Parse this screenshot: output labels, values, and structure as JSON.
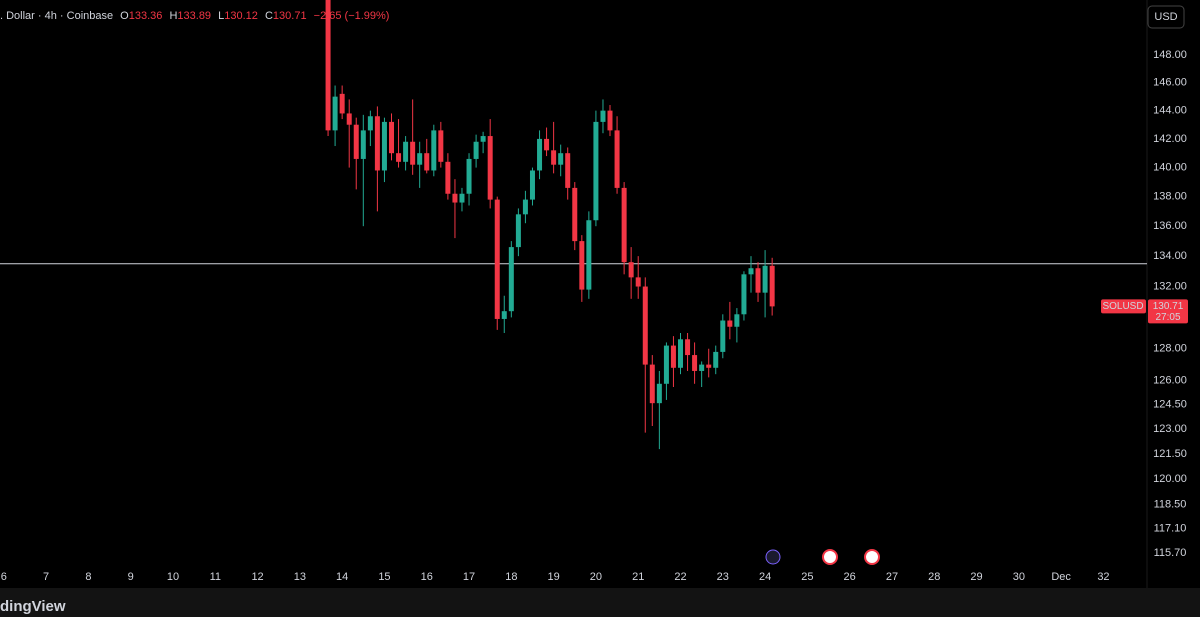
{
  "chart_data": {
    "type": "candlestick",
    "header": ". Dollar · 4h · Coinbase",
    "ohlc_prefixes": [
      "O",
      "H",
      "L",
      "C"
    ],
    "change": "−2.65 (−1.99%)",
    "currency": "USD",
    "symbol_label": "SOLUSD",
    "countdown": "27:05",
    "branding": "dingView",
    "up_color": "#22ab94",
    "down_color": "#f23645",
    "price_line": 133.5,
    "log_scale": true,
    "grid": false,
    "x": [
      13.667,
      13.833,
      14,
      14.167,
      14.333,
      14.5,
      14.667,
      14.833,
      15,
      15.167,
      15.333,
      15.5,
      15.667,
      15.833,
      16,
      16.167,
      16.333,
      16.5,
      16.667,
      16.833,
      17,
      17.167,
      17.333,
      17.5,
      17.667,
      17.833,
      18,
      18.167,
      18.333,
      18.5,
      18.667,
      18.833,
      19,
      19.167,
      19.333,
      19.5,
      19.667,
      19.833,
      20,
      20.167,
      20.333,
      20.5,
      20.667,
      20.833,
      21,
      21.167,
      21.333,
      21.5,
      21.667,
      21.833,
      22,
      22.167,
      22.333,
      22.5,
      22.667,
      22.833,
      23,
      23.167,
      23.333,
      23.5,
      23.667,
      23.833,
      24,
      24.167
    ],
    "open": [
      152.6,
      142.6,
      145.2,
      143.8,
      143.0,
      140.6,
      142.6,
      143.6,
      139.8,
      143.2,
      141.0,
      140.4,
      141.8,
      140.2,
      141.0,
      139.8,
      142.6,
      140.4,
      138.2,
      137.6,
      138.2,
      140.6,
      141.8,
      142.2,
      137.8,
      129.9,
      130.4,
      134.6,
      136.8,
      137.8,
      139.8,
      142.0,
      141.2,
      140.2,
      141.0,
      138.6,
      135.0,
      131.8,
      136.4,
      143.2,
      144.0,
      142.6,
      138.6,
      133.6,
      132.6,
      132.0,
      127.0,
      124.6,
      125.8,
      128.2,
      126.8,
      128.6,
      127.6,
      126.6,
      127.0,
      126.8,
      127.8,
      129.8,
      129.4,
      130.2,
      132.8,
      133.2,
      131.6,
      133.36
    ],
    "high": [
      153.5,
      145.8,
      145.8,
      144.8,
      143.5,
      143.7,
      144.0,
      144.3,
      143.5,
      143.8,
      143.4,
      142.2,
      144.8,
      141.8,
      142.0,
      143.0,
      143.2,
      141.0,
      139.2,
      138.6,
      141.0,
      142.3,
      142.5,
      143.4,
      138.0,
      131.4,
      135.0,
      137.2,
      138.4,
      140.0,
      142.6,
      142.8,
      143.2,
      141.6,
      141.4,
      139.0,
      135.4,
      137.0,
      144.0,
      144.8,
      144.4,
      143.6,
      139.0,
      134.6,
      134.0,
      132.6,
      127.6,
      126.6,
      128.4,
      128.8,
      129.0,
      129.0,
      128.4,
      127.2,
      128.0,
      128.2,
      130.2,
      131.0,
      130.6,
      133.0,
      134.0,
      133.6,
      134.4,
      133.89
    ],
    "low": [
      142.2,
      141.5,
      143.4,
      140.0,
      138.5,
      136.0,
      141.5,
      137.0,
      139.0,
      140.5,
      140.0,
      139.8,
      139.5,
      138.6,
      139.6,
      139.4,
      140.0,
      137.8,
      135.2,
      137.0,
      137.4,
      140.0,
      141.0,
      137.2,
      129.2,
      129.0,
      130.0,
      134.0,
      136.2,
      137.4,
      139.2,
      140.8,
      139.6,
      139.4,
      137.8,
      134.4,
      131.0,
      131.2,
      136.0,
      142.4,
      142.2,
      138.2,
      132.8,
      131.2,
      131.2,
      122.8,
      123.2,
      121.8,
      124.8,
      125.6,
      126.4,
      126.6,
      125.8,
      125.6,
      126.2,
      126.4,
      127.4,
      128.6,
      128.4,
      129.8,
      131.6,
      131.0,
      130.0,
      130.12
    ],
    "close": [
      142.6,
      145.0,
      143.8,
      143.0,
      140.6,
      142.6,
      143.6,
      139.8,
      143.2,
      141.0,
      140.4,
      141.8,
      140.2,
      141.0,
      139.8,
      142.6,
      140.4,
      138.2,
      137.6,
      138.2,
      140.6,
      141.8,
      142.2,
      137.8,
      129.9,
      130.4,
      134.6,
      136.8,
      137.8,
      139.8,
      142.0,
      141.2,
      140.2,
      141.0,
      138.6,
      135.0,
      131.8,
      136.4,
      143.2,
      144.0,
      142.6,
      138.6,
      133.6,
      132.6,
      132.0,
      127.0,
      124.6,
      125.8,
      128.2,
      126.8,
      128.6,
      127.6,
      126.6,
      127.0,
      126.8,
      127.8,
      129.8,
      129.4,
      130.2,
      132.8,
      133.2,
      131.6,
      133.36,
      130.71
    ],
    "xlim": [
      5.91,
      33.03
    ],
    "xticks": [
      6,
      7,
      8,
      9,
      10,
      11,
      12,
      13,
      14,
      15,
      16,
      17,
      18,
      19,
      20,
      21,
      22,
      23,
      24,
      25,
      26,
      27,
      28,
      29,
      30,
      {
        "value": 31,
        "label": "Dec"
      },
      32
    ],
    "ylim": [
      114.73,
      152.1
    ],
    "yticks": [
      {
        "value": 148,
        "label": "148.00"
      },
      {
        "value": 146,
        "label": "146.00"
      },
      {
        "value": 144,
        "label": "144.00"
      },
      {
        "value": 142,
        "label": "142.00"
      },
      {
        "value": 140,
        "label": "140.00"
      },
      {
        "value": 138,
        "label": "138.00"
      },
      {
        "value": 136,
        "label": "136.00"
      },
      {
        "value": 134,
        "label": "134.00"
      },
      {
        "value": 132,
        "label": "132.00"
      },
      {
        "value": 128,
        "label": "128.00"
      },
      {
        "value": 126,
        "label": "126.00"
      },
      {
        "value": 124.5,
        "label": "124.50"
      },
      {
        "value": 123,
        "label": "123.00"
      },
      {
        "value": 121.5,
        "label": "121.50"
      },
      {
        "value": 120,
        "label": "120.00"
      },
      {
        "value": 118.5,
        "label": "118.50"
      },
      {
        "value": 117.1,
        "label": "117.10"
      },
      {
        "value": 115.7,
        "label": "115.70"
      }
    ]
  }
}
